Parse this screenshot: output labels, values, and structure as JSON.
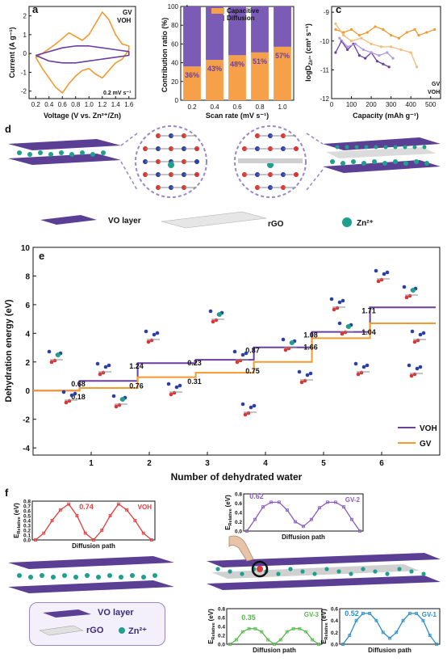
{
  "colors": {
    "gv": "#f39a2e",
    "voh": "#6b3fa0",
    "vo_layer": "#5b3f95",
    "zn": "#1f9f8e",
    "red_curve": "#e03a3a",
    "purple_curve": "#8a5cc0",
    "green_curve": "#55b84a",
    "blue_curve": "#2a8fc4",
    "capacitive": "#f7a04a",
    "diffusion": "#7a5bb5"
  },
  "panel_labels": {
    "a": "a",
    "b": "b",
    "c": "c",
    "d": "d",
    "e": "e",
    "f": "f"
  },
  "panel_a": {
    "ylabel": "Current (A g⁻¹)",
    "xlabel": "Voltage (V vs. Zn²⁺/Zn)",
    "note": "0.2 mV s⁻¹",
    "legend": [
      "GV",
      "VOH"
    ],
    "xticks": [
      "0.2",
      "0.4",
      "0.6",
      "0.8",
      "1.0",
      "1.2",
      "1.4",
      "1.6"
    ],
    "yticks": [
      "-2",
      "-1",
      "0",
      "1",
      "2"
    ]
  },
  "panel_b": {
    "ylabel": "Contribution ratio (%)",
    "xlabel": "Scan rate (mV s⁻¹)",
    "legend": [
      "Capacitive",
      "Diffusion"
    ],
    "xticks": [
      "0.2",
      "0.4",
      "0.6",
      "0.8",
      "1.0"
    ],
    "yticks": [
      "0",
      "20",
      "40",
      "60",
      "80",
      "100"
    ],
    "bar_labels": [
      "36%",
      "43%",
      "48%",
      "51%",
      "57%"
    ]
  },
  "panel_c": {
    "ylabel": "logD",
    "ylabel_sub": "Zn²⁺",
    "ylabel_unit": "(cm² s⁻¹)",
    "xlabel": "Capacity (mAh g⁻¹)",
    "legend": [
      "GV",
      "VOH"
    ],
    "xticks": [
      "0",
      "100",
      "200",
      "300",
      "400",
      "500"
    ],
    "yticks": [
      "-9",
      "-10",
      "-11",
      "-12"
    ]
  },
  "panel_d": {
    "labels": [
      "VO layer",
      "rGO",
      "Zn²⁺"
    ]
  },
  "panel_e": {
    "ylabel": "Dehydration energy (eV)",
    "xlabel": "Number of dehydrated water",
    "xticks": [
      "1",
      "2",
      "3",
      "4",
      "5",
      "6"
    ],
    "yticks": [
      "-4",
      "-2",
      "0",
      "2",
      "4",
      "6",
      "8",
      "10"
    ],
    "legend": [
      "VOH",
      "GV"
    ],
    "voh_steps": [
      "0.68",
      "1.24",
      "0.23",
      "0.87",
      "1.08",
      "1.71"
    ],
    "gv_steps": [
      "0.18",
      "0.76",
      "0.31",
      "0.75",
      "1.66",
      "1.04"
    ]
  },
  "panel_f": {
    "voh": {
      "title": "VOH",
      "value": "0.74",
      "xlabel": "Diffusion path",
      "ylabel": "E",
      "ylabel_sub": "Relative",
      "ylabel_unit": "(eV)",
      "yticks": [
        "0.0",
        "0.1",
        "0.2",
        "0.3",
        "0.4",
        "0.5",
        "0.6",
        "0.7",
        "0.8"
      ]
    },
    "gv2": {
      "title": "GV-2",
      "value": "0.62",
      "xlabel": "Diffusion path",
      "ylabel": "E",
      "ylabel_sub": "Relative",
      "ylabel_unit": "(eV)",
      "yticks": [
        "0.0",
        "0.2",
        "0.4",
        "0.6",
        "0.8"
      ]
    },
    "gv3": {
      "title": "GV-3",
      "value": "0.35",
      "xlabel": "Diffusion path",
      "ylabel": "E",
      "ylabel_sub": "Relative",
      "ylabel_unit": "(eV)",
      "yticks": [
        "0.0",
        "0.2",
        "0.4",
        "0.6",
        "0.8"
      ]
    },
    "gv1": {
      "title": "GV-1",
      "value": "0.52",
      "xlabel": "Diffusion path",
      "ylabel": "E",
      "ylabel_sub": "Relative",
      "ylabel_unit": "(eV)",
      "yticks": [
        "0.0",
        "0.2",
        "0.4",
        "0.6"
      ]
    },
    "legend": [
      "VO layer",
      "rGO",
      "Zn²⁺"
    ]
  },
  "chart_data": [
    {
      "type": "line",
      "panel": "a",
      "xlim": [
        0.1,
        1.7
      ],
      "ylim": [
        -2.4,
        2.5
      ],
      "series": [
        {
          "name": "GV",
          "x": [
            0.2,
            0.3,
            0.5,
            0.7,
            0.8,
            0.9,
            1.0,
            1.1,
            1.2,
            1.3,
            1.4,
            1.5,
            1.6,
            1.6,
            1.5,
            1.4,
            1.3,
            1.2,
            1.1,
            1.0,
            0.9,
            0.8,
            0.7,
            0.6,
            0.5,
            0.4,
            0.3,
            0.2
          ],
          "y": [
            -0.2,
            0.0,
            0.5,
            1.1,
            0.9,
            0.7,
            1.0,
            1.6,
            2.2,
            1.8,
            1.0,
            0.5,
            0.4,
            0.2,
            -0.3,
            -0.5,
            -0.9,
            -1.3,
            -1.1,
            -0.8,
            -0.9,
            -1.2,
            -1.6,
            -2.1,
            -1.8,
            -1.3,
            -0.8,
            -0.2
          ]
        },
        {
          "name": "VOH",
          "x": [
            0.2,
            0.4,
            0.6,
            0.8,
            1.0,
            1.2,
            1.4,
            1.6,
            1.6,
            1.4,
            1.2,
            1.0,
            0.8,
            0.6,
            0.4,
            0.2
          ],
          "y": [
            -0.1,
            0.1,
            0.3,
            0.4,
            0.4,
            0.3,
            0.2,
            0.1,
            -0.1,
            -0.2,
            -0.3,
            -0.4,
            -0.5,
            -0.5,
            -0.4,
            -0.1
          ]
        }
      ]
    },
    {
      "type": "bar",
      "panel": "b",
      "categories": [
        "0.2",
        "0.4",
        "0.6",
        "0.8",
        "1.0"
      ],
      "series": [
        {
          "name": "Capacitive",
          "values": [
            36,
            43,
            48,
            51,
            57
          ]
        },
        {
          "name": "Diffusion",
          "values": [
            64,
            57,
            52,
            49,
            43
          ]
        }
      ],
      "ylim": [
        0,
        100
      ]
    },
    {
      "type": "scatter",
      "panel": "c",
      "xlim": [
        0,
        550
      ],
      "ylim": [
        -12,
        -8.8
      ],
      "series": [
        {
          "name": "GV",
          "x": [
            20,
            60,
            100,
            140,
            180,
            220,
            260,
            300,
            340,
            380,
            420,
            440,
            480,
            520
          ],
          "y": [
            -9.6,
            -9.7,
            -9.6,
            -9.8,
            -9.7,
            -9.5,
            -9.6,
            -9.8,
            -9.9,
            -9.7,
            -9.6,
            -9.8,
            -9.7,
            -9.6
          ]
        },
        {
          "name": "GV",
          "x": [
            20,
            60,
            100,
            150,
            200,
            250,
            300,
            350,
            400,
            430
          ],
          "y": [
            -9.4,
            -9.8,
            -10.0,
            -9.9,
            -10.1,
            -10.2,
            -10.2,
            -10.3,
            -10.4,
            -10.9
          ]
        },
        {
          "name": "VOH",
          "x": [
            20,
            50,
            80,
            110,
            140,
            170,
            200,
            230,
            260,
            290
          ],
          "y": [
            -10.4,
            -10.0,
            -10.3,
            -10.1,
            -10.5,
            -10.6,
            -10.4,
            -10.7,
            -10.8,
            -10.9
          ]
        },
        {
          "name": "VOH",
          "x": [
            40,
            80,
            120,
            160,
            200,
            240,
            280,
            310
          ],
          "y": [
            -9.9,
            -10.2,
            -10.1,
            -10.3,
            -10.4,
            -10.5,
            -10.4,
            -10.6
          ]
        }
      ]
    },
    {
      "type": "line",
      "panel": "e",
      "xlim": [
        0,
        7
      ],
      "ylim": [
        -4.5,
        10
      ],
      "series": [
        {
          "name": "VOH",
          "x": [
            0,
            1,
            2,
            3,
            4,
            5,
            6
          ],
          "y": [
            0,
            0.68,
            1.92,
            2.15,
            3.02,
            4.1,
            5.81
          ]
        },
        {
          "name": "GV",
          "x": [
            0,
            1,
            2,
            3,
            4,
            5,
            6
          ],
          "y": [
            0,
            0.18,
            0.94,
            1.25,
            2.0,
            3.66,
            4.7
          ]
        }
      ]
    },
    {
      "type": "line",
      "panel": "f-VOH",
      "ylim": [
        0,
        0.8
      ],
      "series": [
        {
          "name": "VOH",
          "y": [
            0.0,
            0.14,
            0.4,
            0.62,
            0.74,
            0.5,
            0.14,
            0.0,
            0.2,
            0.5,
            0.74,
            0.62,
            0.4,
            0.14,
            0.0
          ]
        }
      ]
    },
    {
      "type": "line",
      "panel": "f-GV-2",
      "ylim": [
        0,
        0.8
      ],
      "series": [
        {
          "name": "GV-2",
          "y": [
            0.0,
            0.25,
            0.52,
            0.62,
            0.62,
            0.45,
            0.2,
            0.1,
            0.25,
            0.5,
            0.62,
            0.62,
            0.52,
            0.25,
            0.0
          ]
        }
      ]
    },
    {
      "type": "line",
      "panel": "f-GV-3",
      "ylim": [
        0,
        0.8
      ],
      "series": [
        {
          "name": "GV-3",
          "y": [
            0.0,
            0.1,
            0.28,
            0.35,
            0.35,
            0.28,
            0.1,
            0.0,
            0.1,
            0.28,
            0.35,
            0.35,
            0.28,
            0.1,
            0.0
          ]
        }
      ]
    },
    {
      "type": "line",
      "panel": "f-GV-1",
      "ylim": [
        0,
        0.6
      ],
      "series": [
        {
          "name": "GV-1",
          "y": [
            0.0,
            0.15,
            0.4,
            0.52,
            0.52,
            0.4,
            0.2,
            0.1,
            0.2,
            0.4,
            0.52,
            0.52,
            0.4,
            0.15,
            0.0
          ]
        }
      ]
    }
  ]
}
